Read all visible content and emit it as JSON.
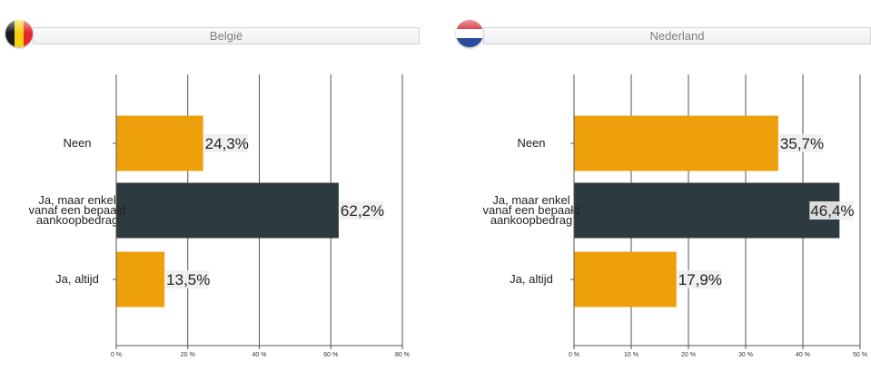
{
  "colors": {
    "orange": "#eea00c",
    "dark": "#2d3a40",
    "grid": "#555555",
    "label_bg": "#eeeeee"
  },
  "panels": [
    {
      "title": "België",
      "flag_icon": "belgium-flag-icon"
    },
    {
      "title": "Nederland",
      "flag_icon": "netherlands-flag-icon"
    }
  ],
  "chart_data": [
    {
      "type": "bar",
      "orientation": "horizontal",
      "title": "België",
      "categories": [
        [
          "Neen"
        ],
        [
          "Ja, maar enkel",
          "vanaf een bepaald",
          "aankoopbedrag"
        ],
        [
          "Ja, altijd"
        ]
      ],
      "values": [
        24.3,
        62.2,
        13.5
      ],
      "value_labels": [
        "24,3%",
        "62,2%",
        "13,5%"
      ],
      "bar_colors": [
        "#eea00c",
        "#2d3a40",
        "#eea00c"
      ],
      "xlim": [
        0,
        80
      ],
      "xticks": [
        0,
        20,
        40,
        60,
        80
      ],
      "xtick_labels": [
        "0 %",
        "20 %",
        "40 %",
        "60 %",
        "80 %"
      ],
      "grid": true
    },
    {
      "type": "bar",
      "orientation": "horizontal",
      "title": "Nederland",
      "categories": [
        [
          "Neen"
        ],
        [
          "Ja, maar enkel",
          "vanaf een bepaald",
          "aankoopbedrag"
        ],
        [
          "Ja, altijd"
        ]
      ],
      "values": [
        35.7,
        46.4,
        17.9
      ],
      "value_labels": [
        "35,7%",
        "46,4%",
        "17,9%"
      ],
      "bar_colors": [
        "#eea00c",
        "#2d3a40",
        "#eea00c"
      ],
      "xlim": [
        0,
        50
      ],
      "xticks": [
        0,
        10,
        20,
        30,
        40,
        50
      ],
      "xtick_labels": [
        "0 %",
        "10 %",
        "20 %",
        "30 %",
        "40 %",
        "50 %"
      ],
      "grid": true
    }
  ]
}
